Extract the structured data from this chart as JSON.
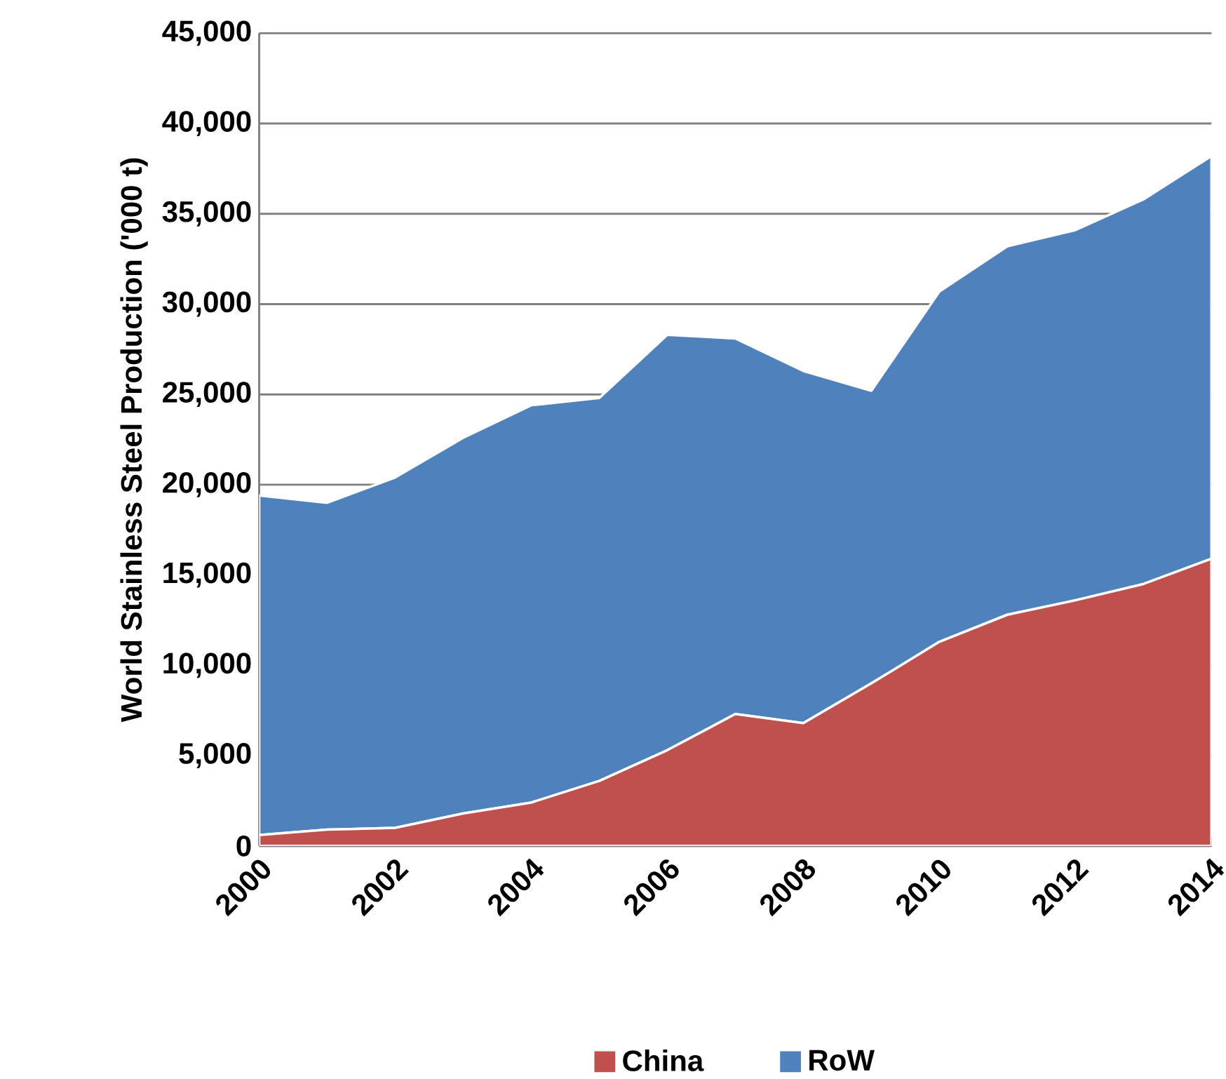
{
  "chart_data": {
    "type": "area",
    "stacked": true,
    "ylabel": "World Stainless Steel Production ('000 t)",
    "x": [
      2000,
      2001,
      2002,
      2003,
      2004,
      2005,
      2006,
      2007,
      2008,
      2009,
      2010,
      2011,
      2012,
      2013,
      2014
    ],
    "series": [
      {
        "name": "China",
        "color": "#c0504d",
        "values": [
          600,
          900,
          1000,
          1800,
          2400,
          3600,
          5300,
          7300,
          6800,
          9000,
          11300,
          12800,
          13600,
          14500,
          15900
        ]
      },
      {
        "name": "RoW",
        "color": "#4f81bd",
        "values": [
          18800,
          18100,
          19400,
          20800,
          22000,
          21200,
          23000,
          20800,
          19500,
          16200,
          19400,
          20400,
          20500,
          21300,
          22300
        ]
      }
    ],
    "xlim": [
      2000,
      2014
    ],
    "xticks": [
      2000,
      2002,
      2004,
      2006,
      2008,
      2010,
      2012,
      2014
    ],
    "ylim": [
      0,
      45000
    ],
    "yticks": [
      {
        "value": 0,
        "label": "0"
      },
      {
        "value": 5000,
        "label": "5,000"
      },
      {
        "value": 10000,
        "label": "10,000"
      },
      {
        "value": 15000,
        "label": "15,000"
      },
      {
        "value": 20000,
        "label": "20,000"
      },
      {
        "value": 25000,
        "label": "25,000"
      },
      {
        "value": 30000,
        "label": "30,000"
      },
      {
        "value": 35000,
        "label": "35,000"
      },
      {
        "value": 40000,
        "label": "40,000"
      },
      {
        "value": 45000,
        "label": "45,000"
      }
    ],
    "grid": "y",
    "legend": "bottom"
  }
}
